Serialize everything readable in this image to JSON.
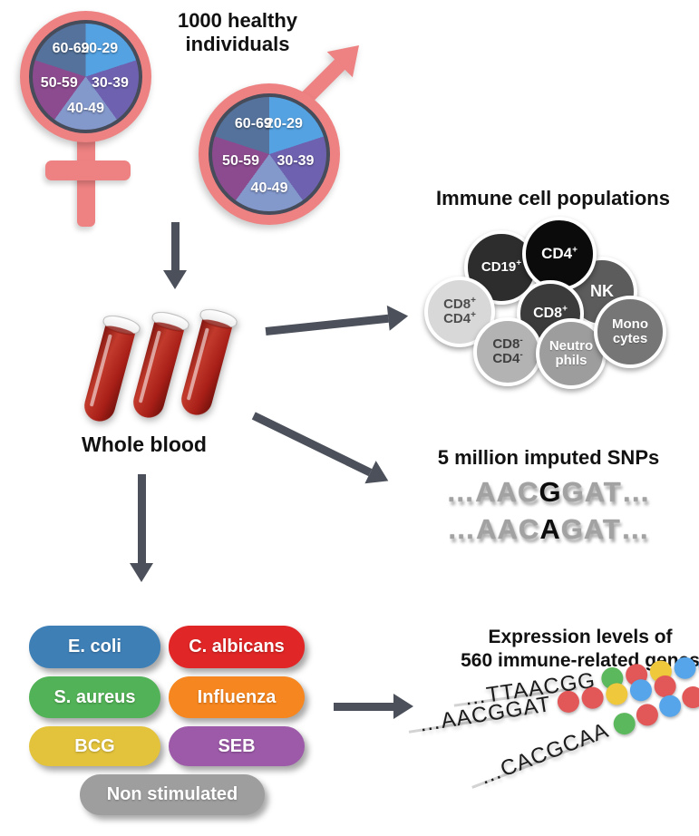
{
  "title": "1000 healthy individuals",
  "colors": {
    "symbol_pink": "#ee8282",
    "arrow_gray": "#4b505a",
    "pie_border": "#464c5a",
    "blood_red": "#a81f18"
  },
  "age_pie": {
    "segments": [
      {
        "label": "20-29",
        "color": "#54a2e2"
      },
      {
        "label": "30-39",
        "color": "#6e62b0"
      },
      {
        "label": "40-49",
        "color": "#8398cb"
      },
      {
        "label": "50-59",
        "color": "#8c4b8e"
      },
      {
        "label": "60-69",
        "color": "#54729b"
      }
    ]
  },
  "whole_blood": {
    "label": "Whole blood"
  },
  "immune_cells": {
    "title": "Immune cell populations",
    "cells": [
      {
        "id": "cd19-pos",
        "name": "CD19+",
        "lines": [
          "CD19^+"
        ],
        "color": "#2d2d2d",
        "text": "#ffffff"
      },
      {
        "id": "nk",
        "name": "NK",
        "lines": [
          "NK"
        ],
        "color": "#5c5c5c",
        "text": "#ffffff"
      },
      {
        "id": "cd4-pos",
        "name": "CD4+",
        "lines": [
          "CD4^+"
        ],
        "color": "#0b0b0b",
        "text": "#ffffff"
      },
      {
        "id": "cd8-cd4-dp",
        "name": "CD8+ CD4+",
        "lines": [
          "CD8^+",
          "CD4^+"
        ],
        "color": "#d8d8d8",
        "text": "#4d4d4d"
      },
      {
        "id": "cd8-pos",
        "name": "CD8+",
        "lines": [
          "CD8^+"
        ],
        "color": "#3b3b3b",
        "text": "#ffffff"
      },
      {
        "id": "cd8-cd4-dn",
        "name": "CD8- CD4-",
        "lines": [
          "CD8^-",
          "CD4^-"
        ],
        "color": "#b3b3b3",
        "text": "#3f3f3f"
      },
      {
        "id": "neutrophils",
        "name": "Neutrophils",
        "lines": [
          "Neutro",
          "phils"
        ],
        "color": "#9d9d9d",
        "text": "#ffffff"
      },
      {
        "id": "monocytes",
        "name": "Monocytes",
        "lines": [
          "Mono",
          "cytes"
        ],
        "color": "#767676",
        "text": "#ffffff"
      }
    ]
  },
  "snps": {
    "title": "5 million imputed SNPs",
    "sequences": [
      {
        "pre": "…AAC",
        "snp": "G",
        "post": "GAT…"
      },
      {
        "pre": "…AAC",
        "snp": "A",
        "post": "GAT…"
      }
    ]
  },
  "stimuli": {
    "items": [
      {
        "label": "E. coli",
        "color": "#3e7fb6"
      },
      {
        "label": "C. albicans",
        "color": "#e02626"
      },
      {
        "label": "S. aureus",
        "color": "#52b257"
      },
      {
        "label": "Influenza",
        "color": "#f6861f"
      },
      {
        "label": "BCG",
        "color": "#e3c33c"
      },
      {
        "label": "SEB",
        "color": "#9c5aa8"
      },
      {
        "label": "Non stimulated",
        "color": "#9e9e9e"
      }
    ]
  },
  "expression": {
    "title_line1": "Expression levels of",
    "title_line2": "560 immune-related genes",
    "dot_colors": {
      "green": "#5cb85c",
      "red": "#e25757",
      "yellow": "#f0c83c",
      "blue": "#56a5ea"
    },
    "rows": [
      {
        "label": "…TTAACGG",
        "dots": [
          "#5cb85c",
          "#e25757",
          "#f0c83c",
          "#56a5ea",
          "#56a5ea"
        ]
      },
      {
        "label": "…AACGGAT",
        "dots": [
          "#e25757",
          "#e25757",
          "#f0c83c",
          "#56a5ea",
          "#e25757"
        ]
      },
      {
        "label": "…CACGCAA",
        "dots": [
          "#5cb85c",
          "#e25757",
          "#56a5ea",
          "#e25757",
          "#e25757"
        ]
      }
    ]
  }
}
